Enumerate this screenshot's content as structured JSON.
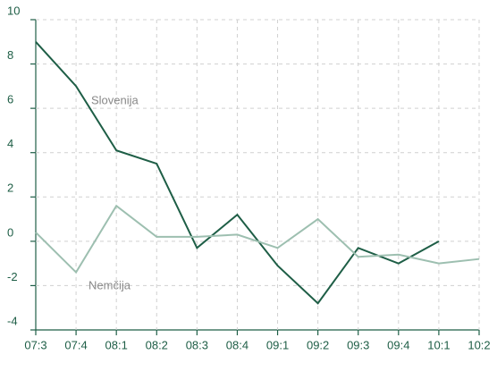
{
  "chart_data": {
    "type": "line",
    "categories": [
      "07:3",
      "07:4",
      "08:1",
      "08:2",
      "08:3",
      "08:4",
      "09:1",
      "09:2",
      "09:3",
      "09:4",
      "10:1",
      "10:2"
    ],
    "series": [
      {
        "name": "Slovenija",
        "color": "#1e5e46",
        "values": [
          9.0,
          7.0,
          4.1,
          3.5,
          -0.3,
          1.2,
          -1.1,
          -2.8,
          -0.3,
          -1.0,
          0,
          null
        ]
      },
      {
        "name": "Nemčija",
        "color": "#9dbfb0",
        "values": [
          0.4,
          -1.4,
          1.6,
          0.2,
          0.2,
          0.3,
          -0.3,
          1.0,
          -0.7,
          -0.6,
          -1.0,
          -0.8
        ]
      }
    ],
    "ylim": [
      -4,
      10
    ],
    "yticks": [
      -4,
      -2,
      0,
      2,
      4,
      6,
      8,
      10
    ],
    "grid": true
  }
}
